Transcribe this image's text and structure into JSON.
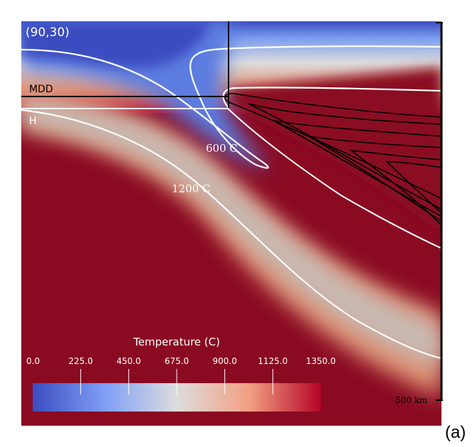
{
  "chart_data": {
    "type": "heatmap",
    "corner_label": "(90,30)",
    "panel_label": "(a)",
    "field": "Temperature",
    "colorbar": {
      "title": "Temperature (C)",
      "range": [
        0.0,
        1350.0
      ],
      "tick_labels": [
        "0.0",
        "225.0",
        "450.0",
        "675.0",
        "900.0",
        "1125.0",
        "1350.0"
      ],
      "tick_values": [
        0,
        225,
        450,
        675,
        900,
        1125,
        1350
      ],
      "colormap": "coolwarm",
      "colors": {
        "low": "#3b4cc0",
        "mid": "#dddddd",
        "high": "#b40426",
        "max": "#8a0a22"
      }
    },
    "isotherms": [
      {
        "label": "600 C",
        "value": 600
      },
      {
        "label": "1200 C",
        "value": 1200
      }
    ],
    "reference_lines": [
      {
        "label": "MDD"
      },
      {
        "label": "H"
      }
    ],
    "scale_bar": {
      "label": "500 km"
    },
    "colors": {
      "isotherm": "#ffffff",
      "streamline": "#000000",
      "frame": "#000000"
    }
  }
}
